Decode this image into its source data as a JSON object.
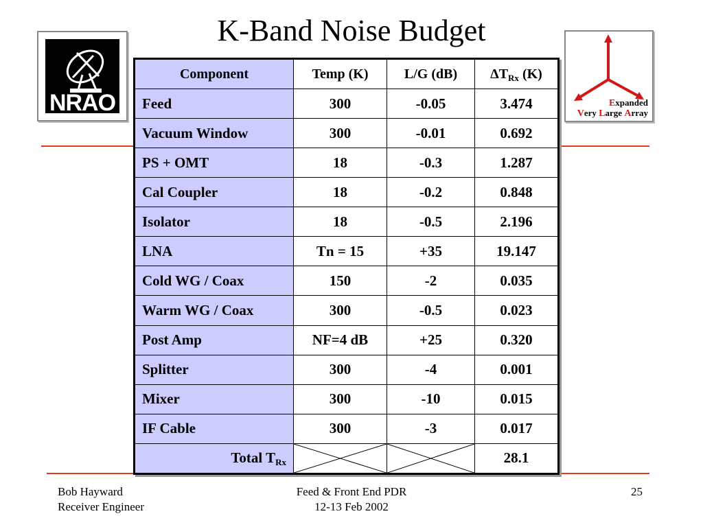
{
  "title": "K-Band Noise Budget",
  "logos": {
    "nrao_text": "NRAO",
    "evla": {
      "line1_cap": "E",
      "line1_rest": "xpanded",
      "line2_cap1": "V",
      "line2_rest1": "ery ",
      "line2_cap2": "L",
      "line2_rest2": "arge ",
      "line2_cap3": "A",
      "line2_rest3": "rray"
    }
  },
  "table": {
    "headers": {
      "component": "Component",
      "temp": "Temp (K)",
      "lg": "L/G (dB)",
      "delta_prefix": "ΔT",
      "delta_sub": "Rx",
      "delta_suffix": " (K)"
    },
    "rows": [
      {
        "component": "Feed",
        "temp": "300",
        "lg": "-0.05",
        "dt": "3.474"
      },
      {
        "component": "Vacuum Window",
        "temp": "300",
        "lg": "-0.01",
        "dt": "0.692"
      },
      {
        "component": "PS + OMT",
        "temp": "18",
        "lg": "-0.3",
        "dt": "1.287"
      },
      {
        "component": "Cal Coupler",
        "temp": "18",
        "lg": "-0.2",
        "dt": "0.848"
      },
      {
        "component": "Isolator",
        "temp": "18",
        "lg": "-0.5",
        "dt": "2.196"
      },
      {
        "component": "LNA",
        "temp": "Tn = 15",
        "lg": "+35",
        "dt": "19.147"
      },
      {
        "component": "Cold WG / Coax",
        "temp": "150",
        "lg": "-2",
        "dt": "0.035"
      },
      {
        "component": "Warm WG / Coax",
        "temp": "300",
        "lg": "-0.5",
        "dt": "0.023"
      },
      {
        "component": "Post Amp",
        "temp": "NF=4 dB",
        "lg": "+25",
        "dt": "0.320"
      },
      {
        "component": "Splitter",
        "temp": "300",
        "lg": "-4",
        "dt": "0.001"
      },
      {
        "component": "Mixer",
        "temp": "300",
        "lg": "-10",
        "dt": "0.015"
      },
      {
        "component": "IF Cable",
        "temp": "300",
        "lg": "-3",
        "dt": "0.017"
      }
    ],
    "total": {
      "label_prefix": "Total T",
      "label_sub": "Rx",
      "value": "28.1"
    }
  },
  "footer": {
    "left_line1": "Bob Hayward",
    "left_line2": "Receiver Engineer",
    "center_line1": "Feed & Front End PDR",
    "center_line2": "12-13 Feb 2002",
    "page": "25"
  },
  "colors": {
    "rule": "#e03a1e",
    "component_column": "#ccccff",
    "evla_arrows": "#d01818"
  }
}
